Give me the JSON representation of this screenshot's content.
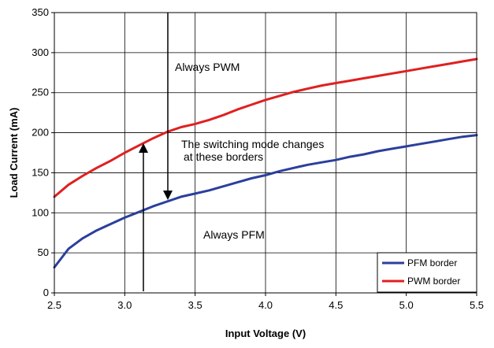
{
  "chart_data": {
    "type": "line",
    "title": "",
    "xlabel": "Input Voltage (V)",
    "ylabel": "Load Current (mA)",
    "xlim": [
      2.5,
      5.5
    ],
    "ylim": [
      0,
      350
    ],
    "x_ticks": [
      "2.5",
      "3.0",
      "3.5",
      "4.0",
      "4.5",
      "5.0",
      "5.5"
    ],
    "y_ticks": [
      "0",
      "50",
      "100",
      "150",
      "200",
      "250",
      "300",
      "350"
    ],
    "grid": true,
    "legend_position": "bottom-right",
    "series": [
      {
        "name": "PFM border",
        "color": "#2b3f9c",
        "x": [
          2.5,
          2.6,
          2.7,
          2.8,
          2.9,
          3.0,
          3.1,
          3.2,
          3.3,
          3.4,
          3.5,
          3.6,
          3.7,
          3.8,
          3.9,
          4.0,
          4.1,
          4.2,
          4.3,
          4.4,
          4.5,
          4.6,
          4.7,
          4.8,
          4.9,
          5.0,
          5.1,
          5.2,
          5.3,
          5.4,
          5.5
        ],
        "y": [
          32,
          55,
          68,
          78,
          86,
          94,
          101,
          108,
          114,
          120,
          124,
          128,
          133,
          138,
          143,
          147,
          152,
          156,
          160,
          163,
          166,
          170,
          173,
          177,
          180,
          183,
          186,
          189,
          192,
          195,
          197
        ]
      },
      {
        "name": "PWM border",
        "color": "#e02020",
        "x": [
          2.5,
          2.6,
          2.7,
          2.8,
          2.9,
          3.0,
          3.1,
          3.2,
          3.3,
          3.4,
          3.5,
          3.6,
          3.7,
          3.8,
          3.9,
          4.0,
          4.1,
          4.2,
          4.3,
          4.4,
          4.5,
          4.6,
          4.7,
          4.8,
          4.9,
          5.0,
          5.1,
          5.2,
          5.3,
          5.4,
          5.5
        ],
        "y": [
          120,
          135,
          146,
          156,
          165,
          175,
          184,
          193,
          201,
          207,
          211,
          216,
          222,
          229,
          235,
          241,
          246,
          251,
          255,
          259,
          262,
          265,
          268,
          271,
          274,
          277,
          280,
          283,
          286,
          289,
          292
        ]
      }
    ],
    "annotations": [
      {
        "text": "Always PWM"
      },
      {
        "text": "The switching mode changes"
      },
      {
        "text": "at these borders"
      },
      {
        "text": "Always PFM"
      }
    ]
  }
}
